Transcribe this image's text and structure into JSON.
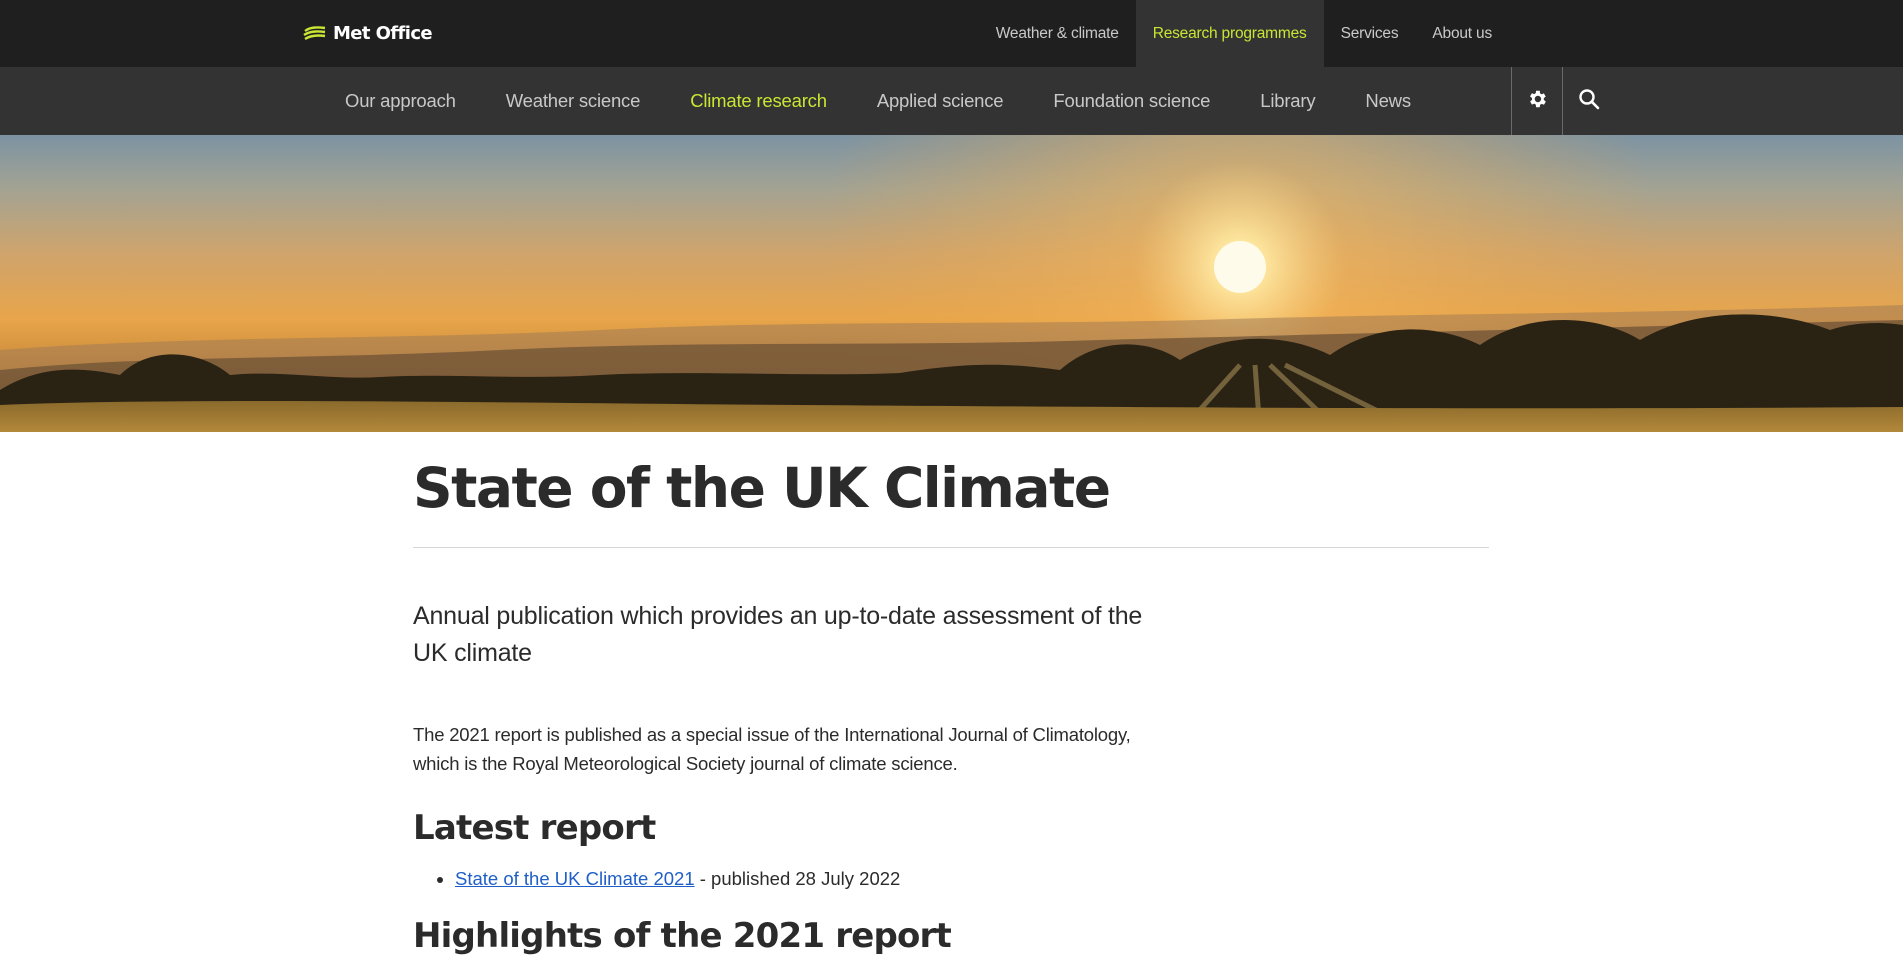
{
  "brand": {
    "name": "Met Office",
    "accent_color": "#c8e633",
    "topbar_color": "#1f1f1f",
    "subnav_color": "#333333"
  },
  "top_nav": [
    {
      "label": "Weather & climate",
      "active": false
    },
    {
      "label": "Research programmes",
      "active": true
    },
    {
      "label": "Services",
      "active": false
    },
    {
      "label": "About us",
      "active": false
    }
  ],
  "sub_nav": [
    {
      "label": "Our approach",
      "active": false
    },
    {
      "label": "Weather science",
      "active": false
    },
    {
      "label": "Climate research",
      "active": true
    },
    {
      "label": "Applied science",
      "active": false
    },
    {
      "label": "Foundation science",
      "active": false
    },
    {
      "label": "Library",
      "active": false
    },
    {
      "label": "News",
      "active": false
    }
  ],
  "icons": {
    "settings": "gear-icon",
    "search": "search-icon",
    "logo": "met-office-logo-icon"
  },
  "page": {
    "title": "State of the UK Climate",
    "lede": "Annual publication which provides an up-to-date assessment of the UK climate",
    "body": "The 2021 report is published as a special issue of the International Journal of Climatology, which is the Royal Meteorological Society journal of climate science.",
    "latest_heading": "Latest report",
    "latest_items": [
      {
        "link_text": "State of the UK Climate 2021",
        "suffix": " - published 28 July 2022"
      }
    ],
    "highlights_heading": "Highlights of the 2021 report"
  }
}
